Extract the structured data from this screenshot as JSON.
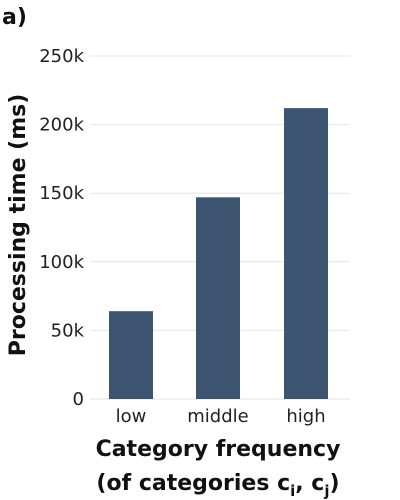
{
  "panel_label": "a)",
  "chart_data": {
    "type": "bar",
    "categories": [
      "low",
      "middle",
      "high"
    ],
    "values": [
      64000,
      147000,
      212000
    ],
    "xlabel_line1": "Category frequency",
    "xlabel_line2_prefix": "(of categories c",
    "xlabel_line2_sub1": "i",
    "xlabel_line2_mid": ", c",
    "xlabel_line2_sub2": "j",
    "xlabel_line2_suffix": ")",
    "ylabel": "Processing time (ms)",
    "ylim": [
      0,
      250000
    ],
    "yticks": [
      {
        "value": 0,
        "label": "0"
      },
      {
        "value": 50000,
        "label": "50k"
      },
      {
        "value": 100000,
        "label": "100k"
      },
      {
        "value": 150000,
        "label": "150k"
      },
      {
        "value": 200000,
        "label": "200k"
      },
      {
        "value": 250000,
        "label": "250k"
      }
    ],
    "grid": true,
    "bar_color": "#3c5470",
    "grid_color": "#e6e6e6"
  }
}
